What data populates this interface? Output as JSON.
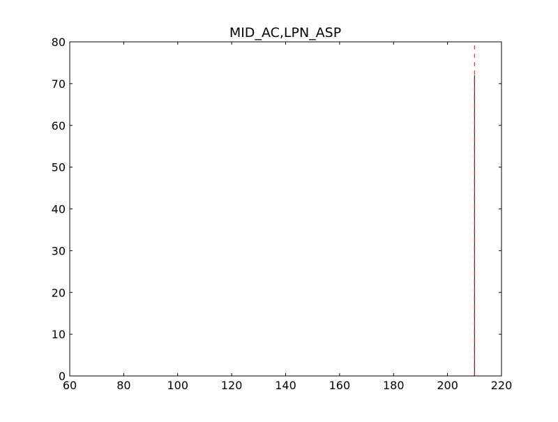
{
  "chart_data": {
    "type": "line",
    "title": "MID_AC,LPN_ASP",
    "xlabel": "",
    "ylabel": "",
    "xlim": [
      60,
      220
    ],
    "ylim": [
      0,
      80
    ],
    "x_ticks": [
      60,
      80,
      100,
      120,
      140,
      160,
      180,
      200,
      220
    ],
    "y_ticks": [
      0,
      10,
      20,
      30,
      40,
      50,
      60,
      70,
      80
    ],
    "grid": false,
    "series": [
      {
        "style": "solid",
        "color": "#000000",
        "x": [
          210,
          210
        ],
        "y": [
          0,
          72
        ]
      },
      {
        "style": "dashed",
        "color": "#ff0000",
        "x": [
          210,
          210
        ],
        "y": [
          0,
          80
        ]
      }
    ]
  }
}
